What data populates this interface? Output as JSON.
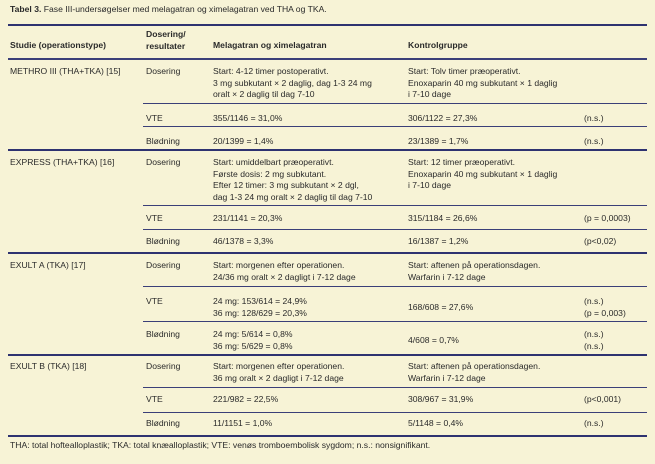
{
  "title": {
    "label": "Tabel 3.",
    "text": "Fase III-undersøgelser med melagatran og ximelagatran ved THA og TKA."
  },
  "header": {
    "study": "Studie (operationstype)",
    "dosing": [
      "Dosering/",
      "resultater"
    ],
    "treatment": "Melagatran og ximelagatran",
    "control": "Kontrolgruppe"
  },
  "studies": [
    {
      "name": "METHRO III (THA+TKA) [15]",
      "rows": [
        {
          "label": "Dosering",
          "treatment": [
            "Start: 4-12 timer postoperativt.",
            "3 mg subkutant × 2 daglig, dag 1-3 24 mg",
            "oralt × 2 daglig til dag 7-10"
          ],
          "control": [
            "Start: Tolv timer præoperativt.",
            "Enoxaparin 40 mg subkutant × 1 daglig",
            "i 7-10 dage"
          ],
          "p": []
        },
        {
          "label": "VTE",
          "treatment": [
            "355/1146 = 31,0%"
          ],
          "control": [
            "306/1122 = 27,3%"
          ],
          "p": [
            "(n.s.)"
          ]
        },
        {
          "label": "Blødning",
          "treatment": [
            "20/1399 = 1,4%"
          ],
          "control": [
            "23/1389 = 1,7%"
          ],
          "p": [
            "(n.s.)"
          ]
        }
      ]
    },
    {
      "name": "EXPRESS (THA+TKA) [16]",
      "rows": [
        {
          "label": "Dosering",
          "treatment": [
            "Start: umiddelbart præoperativt.",
            "Første dosis: 2 mg subkutant.",
            "Efter 12 timer: 3 mg subkutant × 2 dgl,",
            "dag 1-3 24 mg oralt × 2 daglig til dag 7-10"
          ],
          "control": [
            "Start: 12 timer præoperativt.",
            "Enoxaparin 40 mg subkutant × 1 daglig",
            "i 7-10 dage"
          ],
          "p": []
        },
        {
          "label": "VTE",
          "treatment": [
            "231/1141 = 20,3%"
          ],
          "control": [
            "315/1184 = 26,6%"
          ],
          "p": [
            "(p = 0,0003)"
          ]
        },
        {
          "label": "Blødning",
          "treatment": [
            "46/1378 = 3,3%"
          ],
          "control": [
            "16/1387 = 1,2%"
          ],
          "p": [
            "(p<0,02)"
          ]
        }
      ]
    },
    {
      "name": "EXULT A (TKA) [17]",
      "rows": [
        {
          "label": "Dosering",
          "treatment": [
            "Start: morgenen efter operationen.",
            "24/36 mg oralt × 2 dagligt i 7-12 dage"
          ],
          "control": [
            "Start: aftenen på operationsdagen.",
            "Warfarin i 7-12 dage"
          ],
          "p": []
        },
        {
          "label": "VTE",
          "treatment": [
            "24 mg: 153/614 = 24,9%",
            "36 mg: 128/629 = 20,3%"
          ],
          "control": [
            "168/608 = 27,6%"
          ],
          "p": [
            "(n.s.)",
            "(p = 0,003)"
          ]
        },
        {
          "label": "Blødning",
          "treatment": [
            "24 mg: 5/614 = 0,8%",
            "36 mg: 5/629 = 0,8%"
          ],
          "control": [
            "4/608 = 0,7%"
          ],
          "p": [
            "(n.s.)",
            "(n.s.)"
          ]
        }
      ]
    },
    {
      "name": "EXULT B (TKA) [18]",
      "rows": [
        {
          "label": "Dosering",
          "treatment": [
            "Start: morgenen efter operationen.",
            "36 mg oralt × 2 dagligt i 7-12 dage"
          ],
          "control": [
            "Start: aftenen på operationsdagen.",
            "Warfarin i 7-12 dage"
          ],
          "p": []
        },
        {
          "label": "VTE",
          "treatment": [
            "221/982 = 22,5%"
          ],
          "control": [
            "308/967 = 31,9%"
          ],
          "p": [
            "(p<0,001)"
          ]
        },
        {
          "label": "Blødning",
          "treatment": [
            "11/1151 = 1,0%"
          ],
          "control": [
            "5/1148 = 0,4%"
          ],
          "p": [
            "(n.s.)"
          ]
        }
      ]
    }
  ],
  "footnote": "THA: total hoftealloplastik; TKA: total knæalloplastik; VTE: venøs tromboembolisk sygdom; n.s.: nonsignifikant.",
  "colors": {
    "background": "#f7f3d6",
    "rule": "#2e3270"
  }
}
